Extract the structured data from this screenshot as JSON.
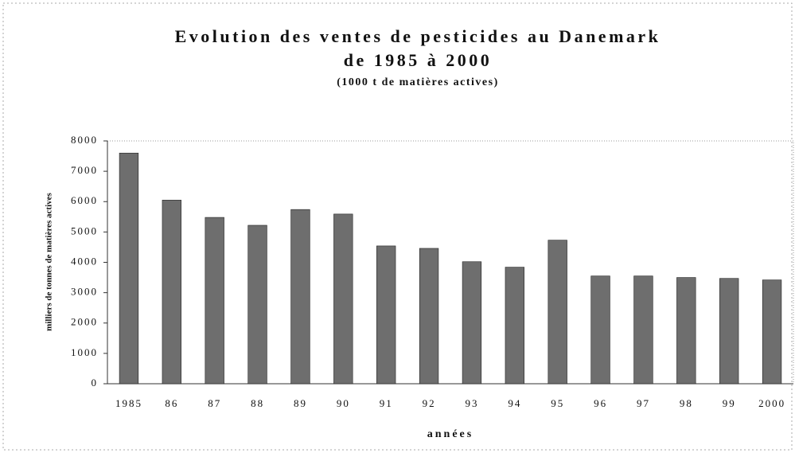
{
  "chart_data": {
    "type": "bar",
    "title": "Evolution des ventes de pesticides au Danemark",
    "title_line2": "de 1985 à 2000",
    "subtitle": "(1000 t de matières actives)",
    "x_label": "années",
    "y_label": "milliers de tonnes de matières actives",
    "categories": [
      "1985",
      "86",
      "87",
      "88",
      "89",
      "90",
      "91",
      "92",
      "93",
      "94",
      "95",
      "96",
      "97",
      "98",
      "99",
      "2000"
    ],
    "values": [
      7600,
      6050,
      5480,
      5220,
      5740,
      5590,
      4540,
      4460,
      4020,
      3840,
      4730,
      3550,
      3550,
      3500,
      3470,
      3420
    ],
    "color": "#6e6e6e",
    "ylim": [
      0,
      8000
    ],
    "yticks": [
      0,
      1000,
      2000,
      3000,
      4000,
      5000,
      6000,
      7000,
      8000
    ],
    "grid": false
  }
}
